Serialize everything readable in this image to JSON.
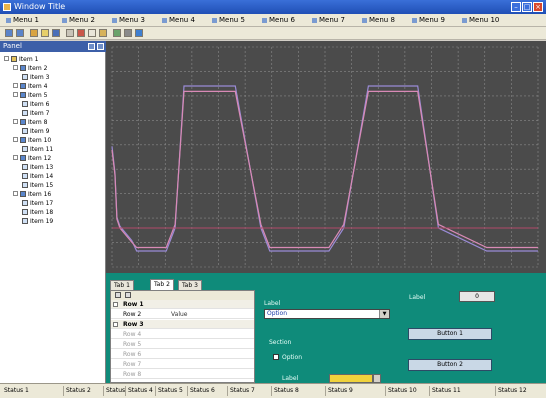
{
  "window": {
    "title": "Window Title"
  },
  "menu": [
    "Menu 1",
    "Menu 2",
    "Menu 3",
    "Menu 4",
    "Menu 5",
    "Menu 6",
    "Menu 7",
    "Menu 8",
    "Menu 9",
    "Menu 10"
  ],
  "toolbar": {
    "icons": [
      "back-icon",
      "forward-icon",
      "home-icon",
      "open-icon",
      "save-icon",
      "print-icon",
      "cut-icon",
      "copy-icon",
      "paste-icon",
      "zoom-icon",
      "settings-icon",
      "help-icon"
    ]
  },
  "tree": {
    "header": "Panel",
    "items": [
      {
        "label": "Item 1",
        "level": 0,
        "kind": "folder"
      },
      {
        "label": "Item 2",
        "level": 1,
        "kind": "node"
      },
      {
        "label": "Item 3",
        "level": 2,
        "kind": "leaf"
      },
      {
        "label": "Item 4",
        "level": 1,
        "kind": "node"
      },
      {
        "label": "Item 5",
        "level": 1,
        "kind": "node"
      },
      {
        "label": "Item 6",
        "level": 2,
        "kind": "leaf"
      },
      {
        "label": "Item 7",
        "level": 2,
        "kind": "leaf"
      },
      {
        "label": "Item 8",
        "level": 1,
        "kind": "node"
      },
      {
        "label": "Item 9",
        "level": 2,
        "kind": "leaf"
      },
      {
        "label": "Item 10",
        "level": 1,
        "kind": "node"
      },
      {
        "label": "Item 11",
        "level": 2,
        "kind": "leaf"
      },
      {
        "label": "Item 12",
        "level": 1,
        "kind": "node"
      },
      {
        "label": "Item 13",
        "level": 2,
        "kind": "leaf"
      },
      {
        "label": "Item 14",
        "level": 2,
        "kind": "leaf"
      },
      {
        "label": "Item 15",
        "level": 2,
        "kind": "leaf"
      },
      {
        "label": "Item 16",
        "level": 1,
        "kind": "node"
      },
      {
        "label": "Item 17",
        "level": 2,
        "kind": "leaf"
      },
      {
        "label": "Item 18",
        "level": 2,
        "kind": "leaf"
      },
      {
        "label": "Item 19",
        "level": 2,
        "kind": "leaf"
      }
    ]
  },
  "chart_data": {
    "type": "line",
    "title": "",
    "xlabel": "",
    "ylabel": "",
    "grid": true,
    "series": [
      {
        "color": "#9a8bd6",
        "x": [
          0,
          3,
          5,
          8,
          20,
          25,
          35,
          55,
          64,
          73,
          93,
          98,
          110,
          125,
          151,
          160,
          175,
          185,
          220,
          235,
          260,
          275,
          285,
          300,
          310,
          331,
          380,
          392,
          432
        ],
        "y": [
          60,
          45,
          20,
          15,
          7,
          1,
          1,
          1,
          14,
          94,
          94,
          94,
          94,
          94,
          14,
          1,
          1,
          1,
          1,
          14,
          94,
          94,
          94,
          94,
          94,
          14,
          1,
          1,
          1
        ]
      },
      {
        "color": "#d98ab6",
        "x": [
          0,
          3,
          5,
          8,
          20,
          25,
          35,
          55,
          64,
          73,
          93,
          98,
          110,
          125,
          151,
          160,
          175,
          185,
          220,
          235,
          260,
          275,
          285,
          300,
          310,
          331,
          380,
          392,
          432
        ],
        "y": [
          58,
          44,
          19,
          14,
          6,
          3,
          3,
          3,
          16,
          91,
          91,
          91,
          91,
          91,
          16,
          3,
          3,
          3,
          3,
          16,
          91,
          91,
          91,
          91,
          91,
          16,
          3,
          3,
          3
        ]
      },
      {
        "color": "#b04a6a",
        "x": [
          0,
          432
        ],
        "y": [
          14,
          14
        ]
      }
    ],
    "x_range": [
      0,
      432
    ],
    "y_range": [
      -8,
      116
    ]
  },
  "props": {
    "tabs": [
      "Tab 1",
      "Tab 2",
      "Tab 3"
    ],
    "grid_rows": [
      {
        "key": "Row 1",
        "value": "",
        "type": "group"
      },
      {
        "key": "Row 2",
        "value": "Value",
        "type": "prop"
      },
      {
        "key": "Row 3",
        "value": "",
        "type": "group"
      },
      {
        "key": "Row 4",
        "value": "",
        "type": "dim"
      },
      {
        "key": "Row 5",
        "value": "",
        "type": "dim"
      },
      {
        "key": "Row 6",
        "value": "",
        "type": "dim"
      },
      {
        "key": "Row 7",
        "value": "",
        "type": "dim"
      },
      {
        "key": "Row 8",
        "value": "",
        "type": "dim"
      }
    ],
    "select_label": "Label",
    "select_value": "Option",
    "section_label": "Section",
    "checkbox_label": "Option",
    "color_label": "Label",
    "swatch_color": "#f0d23c",
    "value_label": "Label",
    "value_box": "0",
    "value_unit": "",
    "button_1": "Button 1",
    "button_2": "Button 2"
  },
  "statusbar": [
    "Status 1",
    "Status 2",
    "Status 3",
    "Status 4",
    "Status 5",
    "Status 6",
    "Status 7",
    "Status 8",
    "Status 9",
    "Status 10",
    "Status 11",
    "Status 12"
  ]
}
